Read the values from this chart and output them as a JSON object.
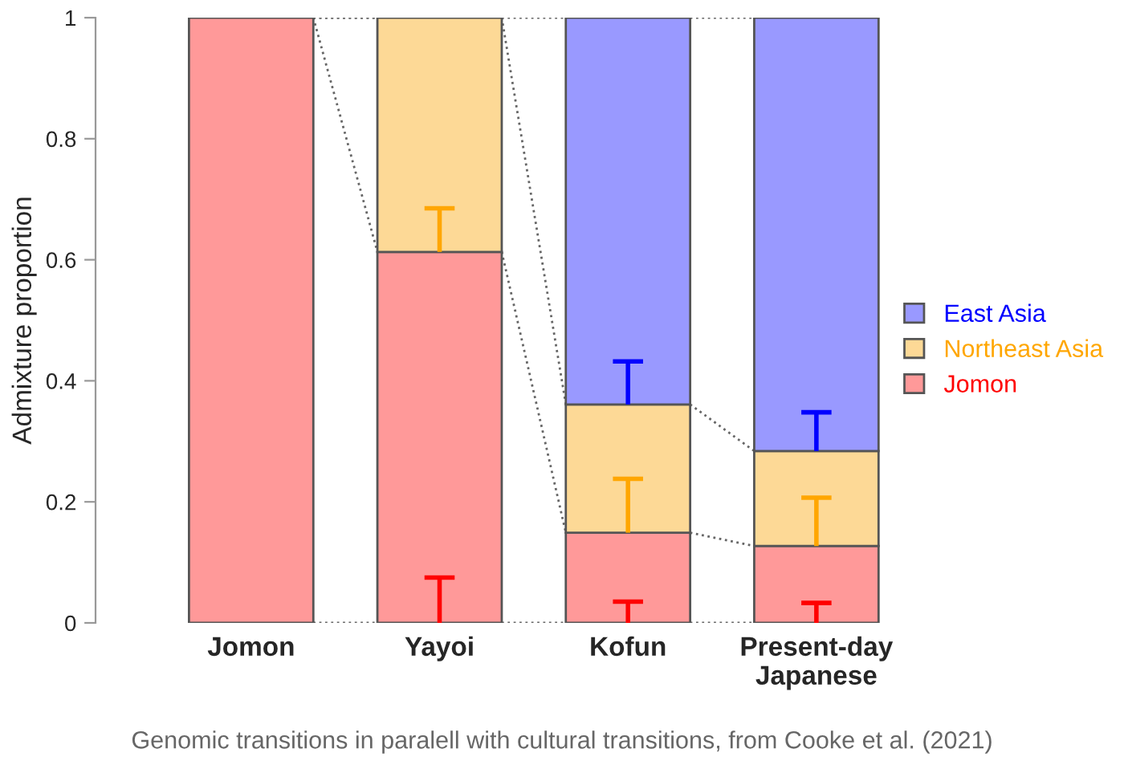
{
  "chart_data": {
    "type": "bar",
    "stacked": true,
    "categories": [
      "Jomon",
      "Yayoi",
      "Kofun",
      "Present-day\nJapanese"
    ],
    "ylabel": "Admixture proportion",
    "ylim": [
      0,
      1
    ],
    "yticks": [
      0,
      0.2,
      0.4,
      0.6,
      0.8,
      1
    ],
    "series": [
      {
        "name": "Jomon",
        "color": "#ff9999",
        "values": [
          1,
          0.613,
          0.149,
          0.127
        ],
        "errors": [
          null,
          [
            0,
            0.075
          ],
          [
            0,
            0.035
          ],
          [
            0,
            0.033
          ]
        ]
      },
      {
        "name": "Northeast Asia",
        "color": "#fdd996",
        "values": [
          null,
          0.387,
          0.212,
          0.157
        ],
        "errors": [
          null,
          [
            0.613,
            0.685
          ],
          [
            0.149,
            0.238
          ],
          [
            0.127,
            0.207
          ]
        ]
      },
      {
        "name": "East Asia",
        "color": "#9999ff",
        "values": [
          null,
          null,
          0.639,
          0.716
        ],
        "errors": [
          null,
          null,
          [
            0.361,
            0.432
          ],
          [
            0.284,
            0.348
          ]
        ]
      }
    ],
    "legend": "right",
    "grid": false,
    "annotations": [
      "Genomic transitions in paralell with cultural transitions, from Cooke et al. (2021)"
    ]
  }
}
